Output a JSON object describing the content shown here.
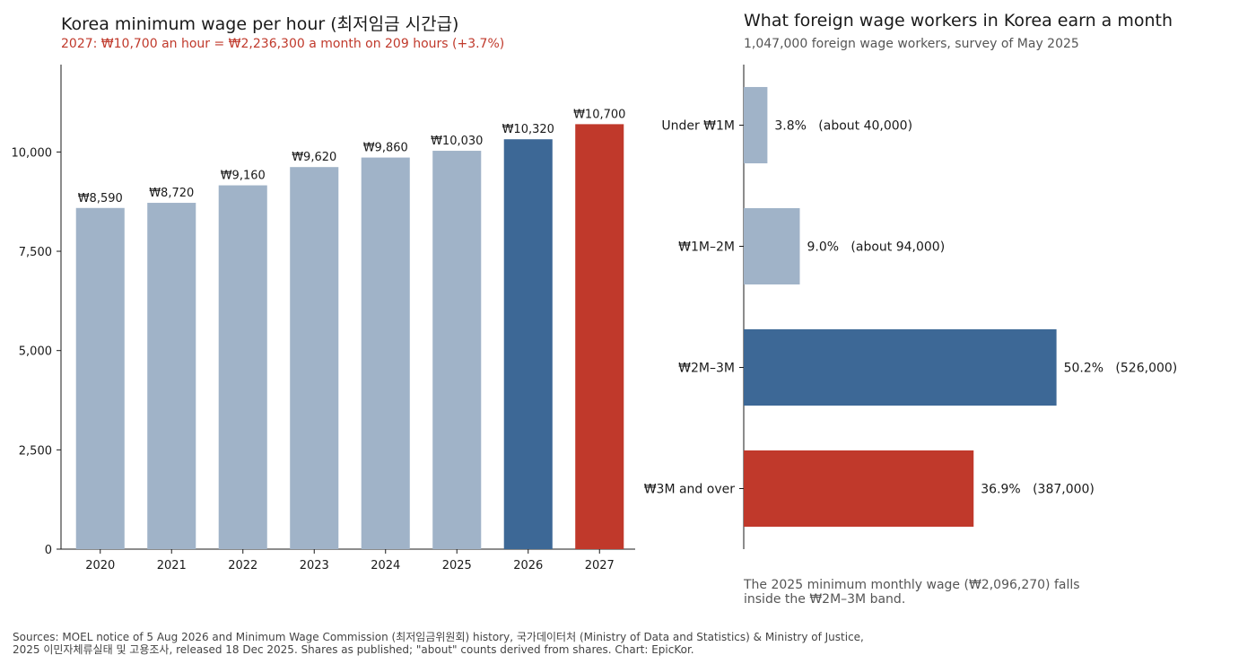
{
  "colors": {
    "light": "#a0b3c8",
    "dark": "#3d6896",
    "accent": "#c0392b",
    "axis": "#1a1a1a",
    "text": "#1a1a1a",
    "muted": "#555555"
  },
  "left": {
    "title": "Korea minimum wage per hour (최저임금 시간급)",
    "subtitle": "2027: ₩10,700 an hour = ₩2,236,300 a month on 209 hours (+3.7%)"
  },
  "right": {
    "title": "What foreign wage workers in Korea earn a month",
    "subtitle": "1,047,000 foreign wage workers, survey of May 2025",
    "note": "The 2025 minimum monthly wage (₩2,096,270) falls inside the ₩2M–3M band."
  },
  "sources": [
    "Sources: MOEL notice of 5 Aug 2026 and Minimum Wage Commission (최저임금위원회) history, 국가데이터처 (Ministry of Data and Statistics) & Ministry of Justice,",
    "2025 이민자체류실태 및 고용조사, released 18 Dec 2025. Shares as published; \"about\" counts derived from shares. Chart: EpicKor."
  ],
  "chart_data": [
    {
      "type": "bar",
      "orientation": "vertical",
      "title": "Korea minimum wage per hour (최저임금 시간급)",
      "categories": [
        "2020",
        "2021",
        "2022",
        "2023",
        "2024",
        "2025",
        "2026",
        "2027"
      ],
      "values": [
        8590,
        8720,
        9160,
        9620,
        9860,
        10030,
        10320,
        10700
      ],
      "data_labels": [
        "₩8,590",
        "₩8,720",
        "₩9,160",
        "₩9,620",
        "₩9,860",
        "₩10,030",
        "₩10,320",
        "₩10,700"
      ],
      "bar_colors": [
        "light",
        "light",
        "light",
        "light",
        "light",
        "light",
        "dark",
        "accent"
      ],
      "yticks": [
        0,
        2500,
        5000,
        7500,
        10000
      ],
      "ytick_labels": [
        "0",
        "2,500",
        "5,000",
        "7,500",
        "10,000"
      ],
      "ylim": [
        0,
        12200
      ],
      "grid": false,
      "xlabel": "",
      "ylabel": ""
    },
    {
      "type": "bar",
      "orientation": "horizontal",
      "title": "What foreign wage workers in Korea earn a month",
      "categories": [
        "Under ₩1M",
        "₩1M–2M",
        "₩2M–3M",
        "₩3M and over"
      ],
      "values": [
        3.8,
        9.0,
        50.2,
        36.9
      ],
      "data_labels": [
        "3.8%   (about 40,000)",
        "9.0%   (about 94,000)",
        "50.2%   (526,000)",
        "36.9%   (387,000)"
      ],
      "bar_colors": [
        "light",
        "light",
        "dark",
        "accent"
      ],
      "xlim": [
        0,
        72
      ],
      "grid": false,
      "xlabel": "",
      "ylabel": ""
    }
  ]
}
